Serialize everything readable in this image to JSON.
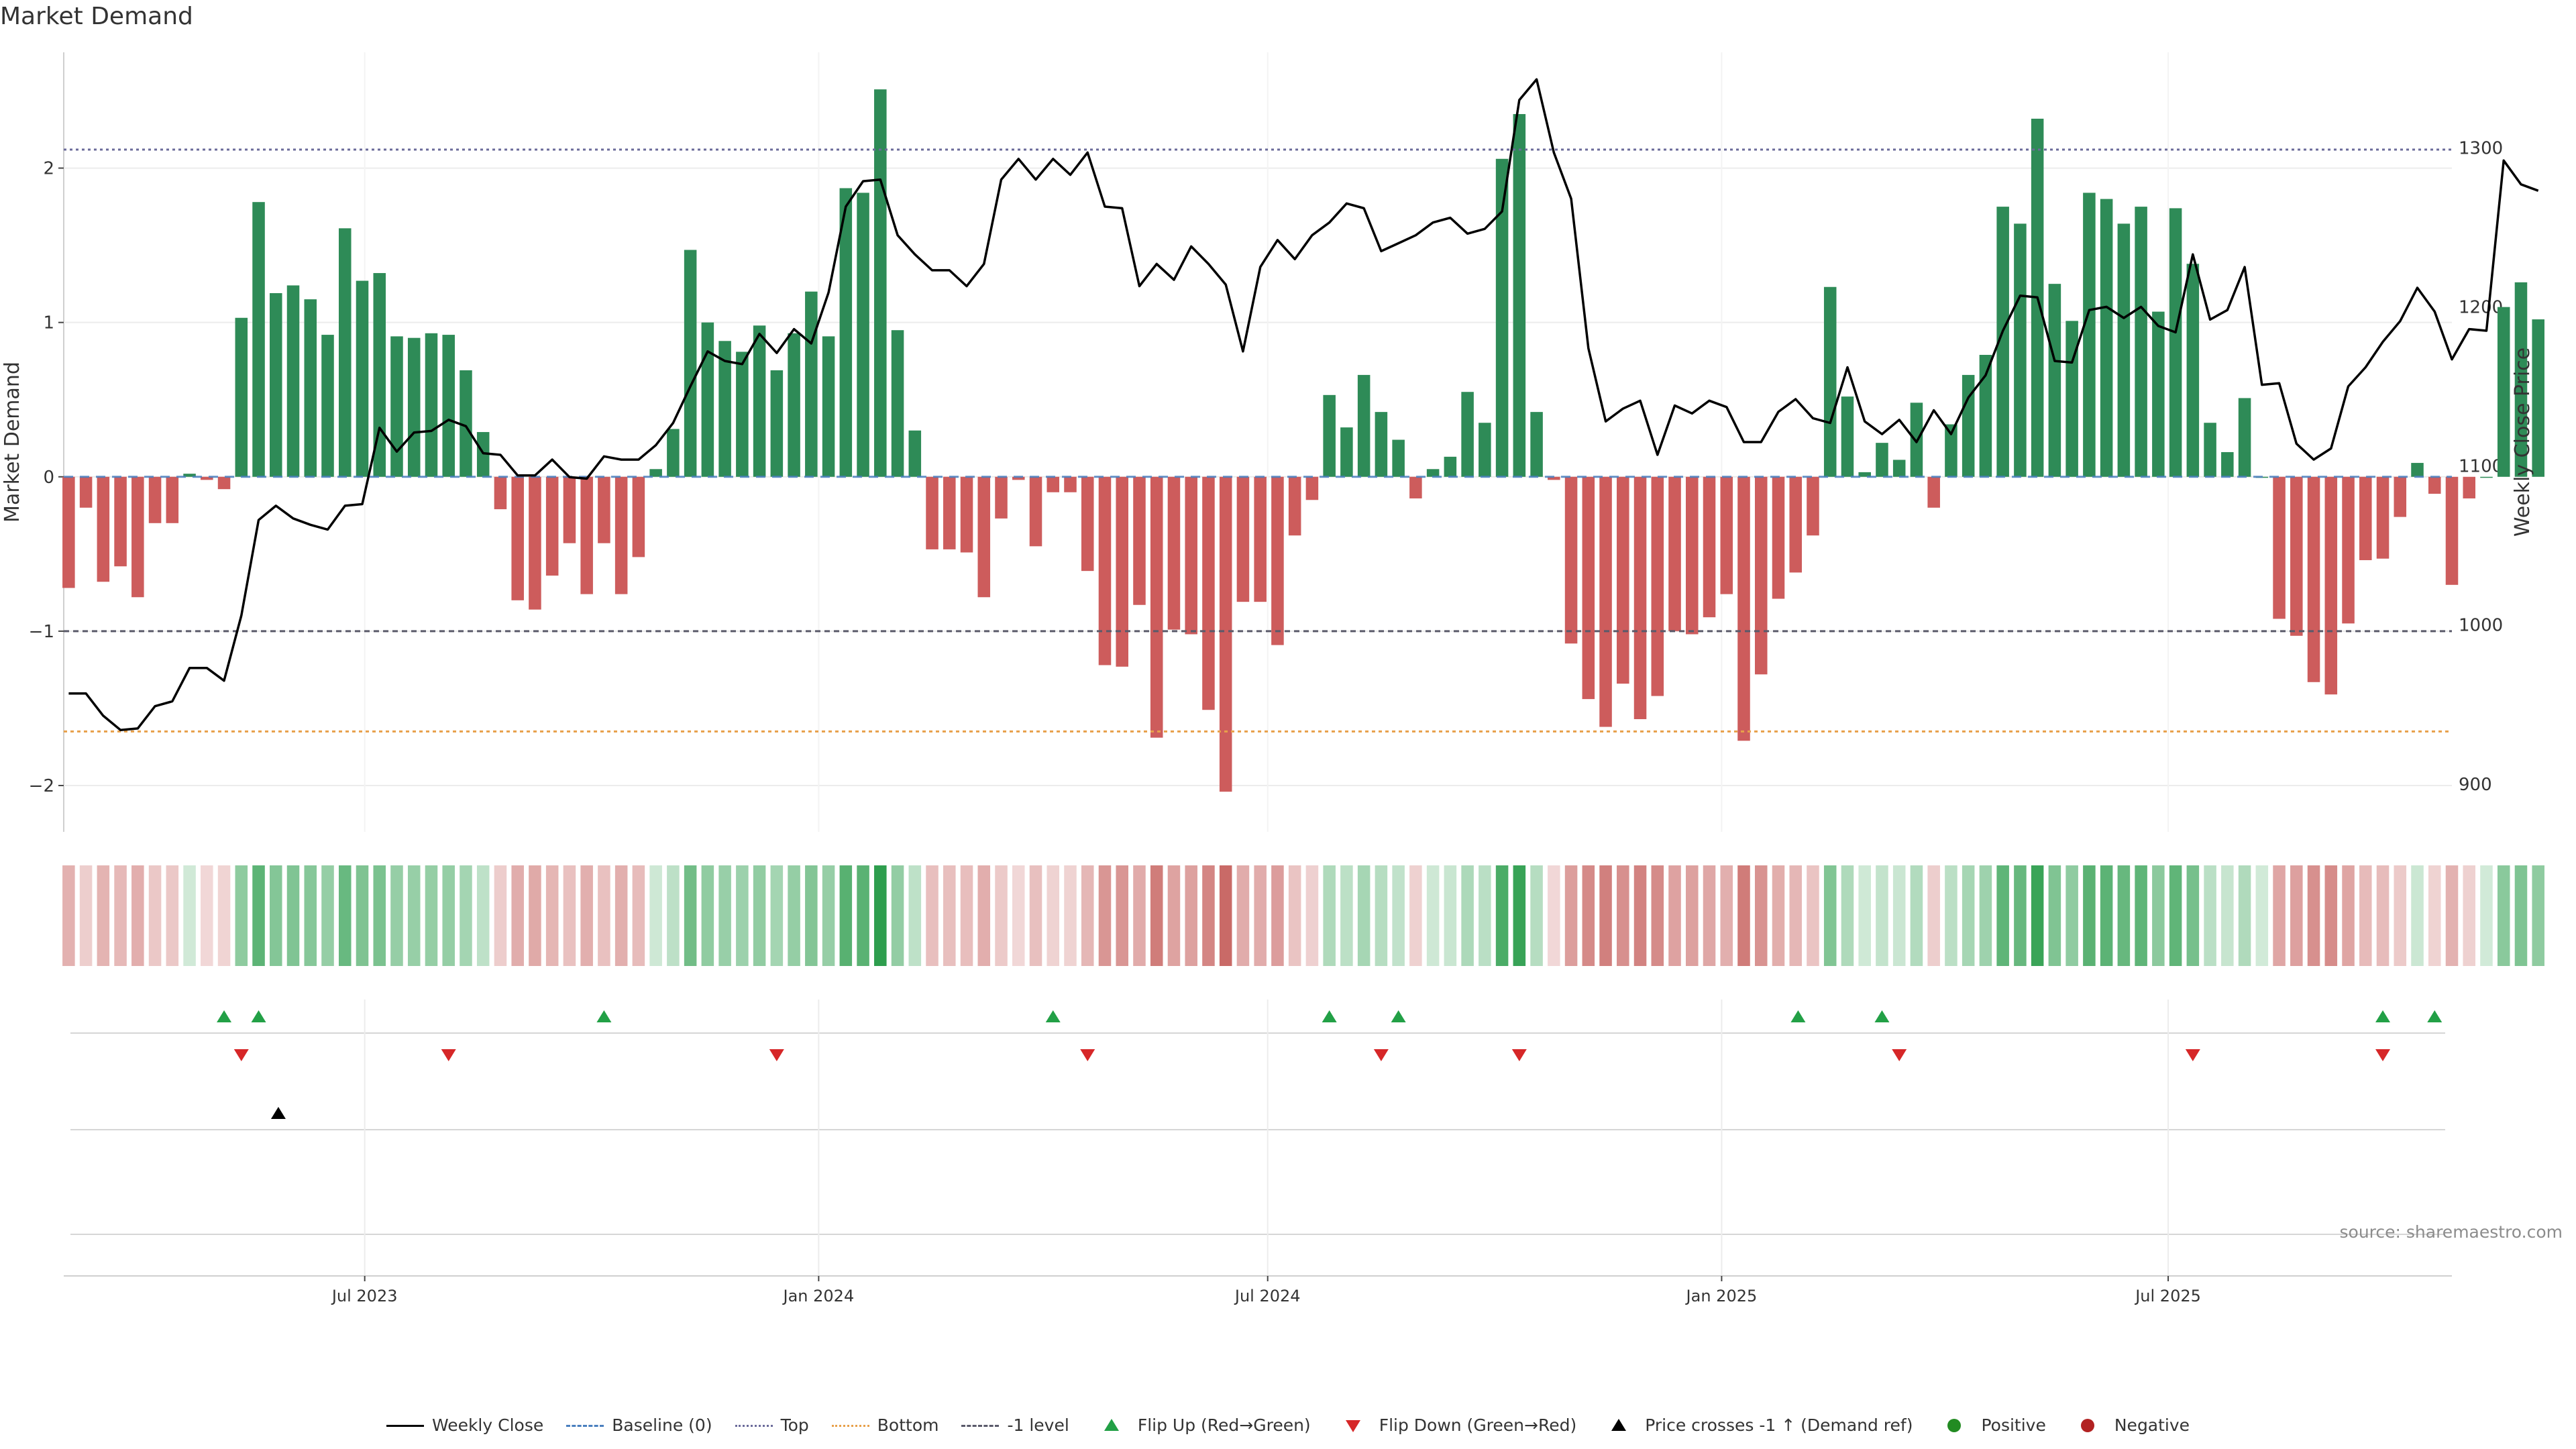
{
  "title": "Market Demand",
  "source": "source: sharemaestro.com",
  "colors": {
    "positive_bar": "#2e8b57",
    "negative_bar": "#cd5c5c",
    "price_line": "#000000",
    "top_line": "#6b6b9a",
    "bottom_line": "#e8a04a",
    "minus1_line": "#5a5a6a",
    "flip_up": "#22a046",
    "flip_down": "#d62728",
    "cross_marker": "#000000",
    "positive_dot": "#228b22",
    "negative_dot": "#b22222"
  },
  "legend": [
    {
      "label": "Weekly Close",
      "kind": "line",
      "color": "#000000",
      "dash": "solid"
    },
    {
      "label": "Baseline (0)",
      "kind": "line",
      "color": "#4a7fbf",
      "dash": "dashed"
    },
    {
      "label": "Top",
      "kind": "line",
      "color": "#6b6b9a",
      "dash": "dotted"
    },
    {
      "label": "Bottom",
      "kind": "line",
      "color": "#e8a04a",
      "dash": "dotted"
    },
    {
      "label": "-1 level",
      "kind": "line",
      "color": "#5a5a6a",
      "dash": "dashed"
    },
    {
      "label": "Flip Up (Red→Green)",
      "kind": "tri-up",
      "color": "#22a046"
    },
    {
      "label": "Flip Down (Green→Red)",
      "kind": "tri-down",
      "color": "#d62728"
    },
    {
      "label": "Price crosses -1 ↑ (Demand ref)",
      "kind": "tri-up",
      "color": "#000000"
    },
    {
      "label": "Positive",
      "kind": "dot",
      "color": "#228b22"
    },
    {
      "label": "Negative",
      "kind": "dot",
      "color": "#b22222"
    }
  ],
  "chart_data": {
    "type": "bar",
    "title": "Market Demand",
    "ylabel": "Market Demand",
    "ylabel_right": "Weekly Close Price",
    "ylim": [
      -2.3,
      2.75
    ],
    "ylim_right": [
      870,
      1360
    ],
    "yticks": [
      -2,
      -1,
      0,
      1,
      2
    ],
    "yticks_right": [
      900,
      1000,
      1100,
      1200,
      1300
    ],
    "x_range": [
      "2023-03-01",
      "2025-10-24"
    ],
    "x_ticks": [
      {
        "date": "2023-07-01",
        "label": "Jul 2023"
      },
      {
        "date": "2024-01-01",
        "label": "Jan 2024"
      },
      {
        "date": "2024-07-01",
        "label": "Jul 2024"
      },
      {
        "date": "2025-01-01",
        "label": "Jan 2025"
      },
      {
        "date": "2025-07-01",
        "label": "Jul 2025"
      }
    ],
    "first_week": "2023-03-03",
    "week_step_days": 7,
    "grid": true,
    "reference_lines": {
      "top": 2.12,
      "bottom": -1.65,
      "minus1": -1.0,
      "baseline": 0
    },
    "demand": [
      -0.72,
      -0.2,
      -0.68,
      -0.58,
      -0.78,
      -0.3,
      -0.3,
      0.02,
      -0.02,
      -0.08,
      1.03,
      1.78,
      1.19,
      1.24,
      1.15,
      0.92,
      1.61,
      1.27,
      1.32,
      0.91,
      0.9,
      0.93,
      0.92,
      0.69,
      0.29,
      -0.21,
      -0.8,
      -0.86,
      -0.64,
      -0.43,
      -0.76,
      -0.43,
      -0.76,
      -0.52,
      0.05,
      0.31,
      1.47,
      1.0,
      0.88,
      0.81,
      0.98,
      0.69,
      0.93,
      1.2,
      0.91,
      1.87,
      1.84,
      2.51,
      0.95,
      0.3,
      -0.47,
      -0.47,
      -0.49,
      -0.78,
      -0.27,
      -0.02,
      -0.45,
      -0.1,
      -0.1,
      -0.61,
      -1.22,
      -1.23,
      -0.83,
      -1.69,
      -0.99,
      -1.02,
      -1.51,
      -2.04,
      -0.81,
      -0.81,
      -1.09,
      -0.38,
      -0.15,
      0.53,
      0.32,
      0.66,
      0.42,
      0.24,
      -0.14,
      0.05,
      0.13,
      0.55,
      0.35,
      2.06,
      2.35,
      0.42,
      -0.02,
      -1.08,
      -1.44,
      -1.62,
      -1.34,
      -1.57,
      -1.42,
      -1.0,
      -1.02,
      -0.91,
      -0.76,
      -1.71,
      -1.28,
      -0.79,
      -0.62,
      -0.38,
      1.23,
      0.52,
      0.03,
      0.22,
      0.11,
      0.48,
      -0.2,
      0.34,
      0.66,
      0.79,
      1.75,
      1.64,
      2.32,
      1.25,
      1.01,
      1.84,
      1.8,
      1.64,
      1.75,
      1.07,
      1.74,
      1.38,
      0.35,
      0.16,
      0.51,
      0.0,
      -0.92,
      -1.03,
      -1.33,
      -1.41,
      -0.95,
      -0.54,
      -0.53,
      -0.26,
      0.09,
      -0.11,
      -0.7,
      -0.14,
      0.0,
      1.1,
      1.26,
      1.02
    ],
    "weekly_close": [
      957,
      957,
      943,
      934,
      935,
      949,
      952,
      973,
      973,
      965,
      1006,
      1066,
      1075,
      1067,
      1063,
      1060,
      1075,
      1076,
      1124,
      1109,
      1121,
      1122,
      1129,
      1125,
      1108,
      1107,
      1094,
      1094,
      1104,
      1093,
      1092,
      1106,
      1104,
      1104,
      1113,
      1127,
      1150,
      1172,
      1166,
      1164,
      1183,
      1171,
      1186,
      1177,
      1209,
      1263,
      1279,
      1280,
      1245,
      1233,
      1223,
      1223,
      1213,
      1227,
      1280,
      1293,
      1280,
      1293,
      1283,
      1297,
      1263,
      1262,
      1213,
      1227,
      1217,
      1238,
      1227,
      1214,
      1172,
      1225,
      1242,
      1230,
      1245,
      1253,
      1265,
      1262,
      1235,
      1240,
      1245,
      1253,
      1256,
      1246,
      1249,
      1260,
      1330,
      1343,
      1297,
      1268,
      1174,
      1128,
      1136,
      1141,
      1107,
      1138,
      1133,
      1141,
      1137,
      1115,
      1115,
      1134,
      1142,
      1130,
      1127,
      1162,
      1128,
      1120,
      1129,
      1115,
      1135,
      1120,
      1143,
      1157,
      1185,
      1207,
      1206,
      1166,
      1165,
      1198,
      1200,
      1193,
      1200,
      1188,
      1184,
      1233,
      1192,
      1198,
      1225,
      1151,
      1152,
      1114,
      1104,
      1111,
      1150,
      1162,
      1178,
      1191,
      1212,
      1197,
      1167,
      1186,
      1185,
      1292,
      1277,
      1273
    ],
    "flip_up_dates": [
      "2023-05-05",
      "2023-05-19",
      "2023-10-06",
      "2024-04-05",
      "2024-07-26",
      "2024-08-23",
      "2025-02-01",
      "2025-03-07",
      "2025-09-26",
      "2025-10-17"
    ],
    "flip_down_dates": [
      "2023-05-12",
      "2023-08-04",
      "2023-12-15",
      "2024-04-19",
      "2024-08-16",
      "2024-10-11",
      "2025-03-14",
      "2025-07-11",
      "2025-09-26"
    ],
    "price_cross_dates": [
      "2023-05-27"
    ]
  }
}
